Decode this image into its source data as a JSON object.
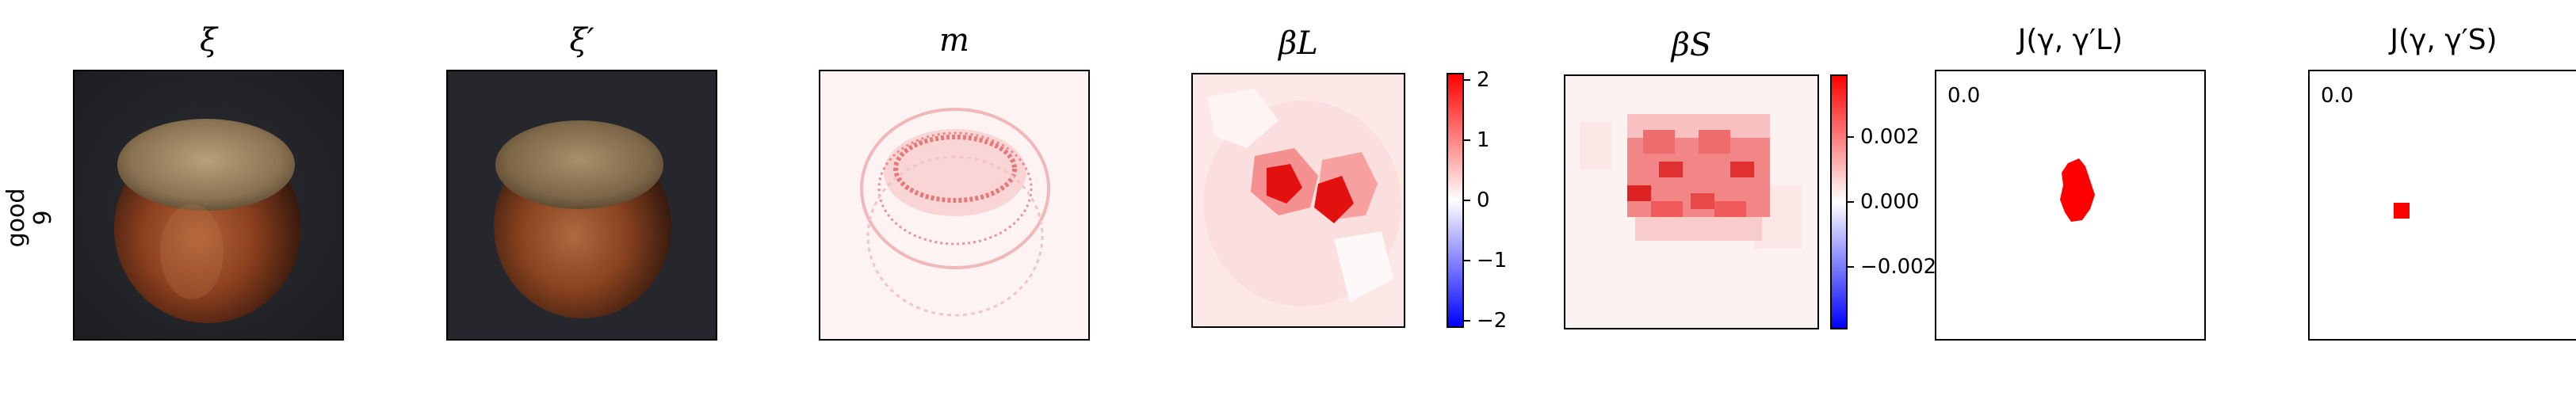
{
  "row": {
    "label_line1": "good",
    "label_line2": "9"
  },
  "panels": {
    "xi": {
      "title": "ξ"
    },
    "xi_prime": {
      "title": "ξ′"
    },
    "m": {
      "title": "m"
    },
    "beta_L": {
      "title": "βL",
      "colorbar_ticks": [
        "2",
        "1",
        "0",
        "−1",
        "−2"
      ]
    },
    "beta_S": {
      "title": "βS",
      "colorbar_ticks": [
        "0.002",
        "0.000",
        "−0.002"
      ]
    },
    "J_L": {
      "title": "J(γ, γ′L)",
      "value": "0.0"
    },
    "J_S": {
      "title": "J(γ, γ′S)",
      "value": "0.0"
    }
  },
  "colors": {
    "positive": "#ff0000",
    "negative": "#0000ff",
    "neutral": "#ffffff",
    "background_dark": "#23252b"
  }
}
